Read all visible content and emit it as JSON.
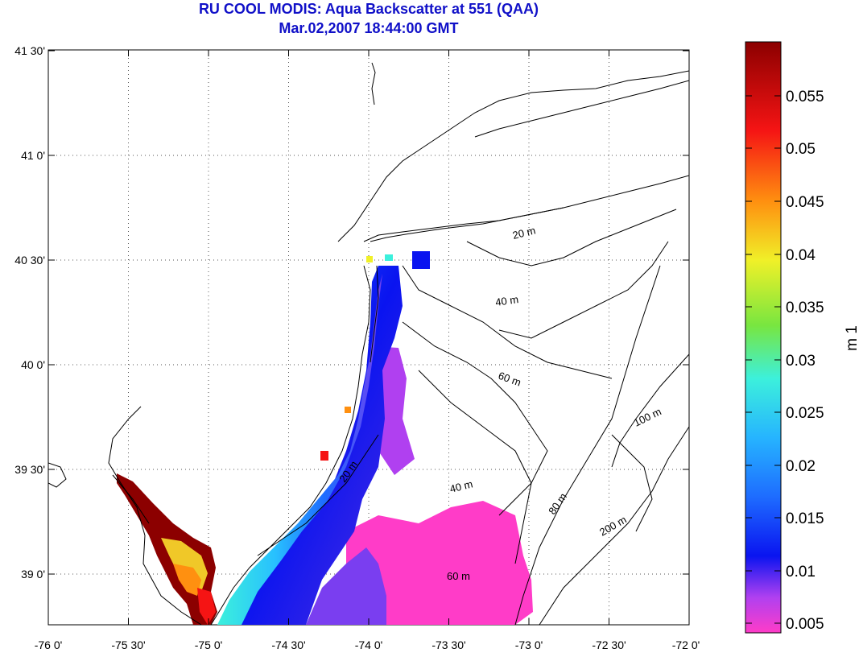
{
  "title": "RU COOL MODIS: Aqua Backscatter at 551 (QAA)",
  "subtitle": "Mar.02,2007 18:44:00 GMT",
  "x_ticks": [
    "-76 0'",
    "-75 30'",
    "-75 0'",
    "-74 30'",
    "-74 0'",
    "-73 30'",
    "-73 0'",
    "-72 30'",
    "-72 0'"
  ],
  "y_ticks": [
    "41 30'",
    "41 0'",
    "40 30'",
    "40 0'",
    "39 30'",
    "39 0'"
  ],
  "colorbar": {
    "label": "m 1",
    "ticks": [
      "0.055",
      "0.05",
      "0.045",
      "0.04",
      "0.035",
      "0.03",
      "0.025",
      "0.02",
      "0.015",
      "0.01",
      "0.005"
    ],
    "range": [
      0.003,
      0.06
    ],
    "colors": [
      "#ff3cc8",
      "#a040ff",
      "#0a14f0",
      "#1e78ff",
      "#28c0ff",
      "#3cf0dc",
      "#78e640",
      "#f0f028",
      "#ff8c10",
      "#f51414",
      "#8c0000"
    ]
  },
  "depth_contours": [
    "20 m",
    "40 m",
    "60 m",
    "100 m",
    "20 m",
    "40 m",
    "80 m",
    "200 m",
    "60 m"
  ],
  "chart_data": {
    "type": "heatmap",
    "title": "RU COOL MODIS: Aqua Backscatter at 551 (QAA)",
    "subtitle": "Mar.02,2007 18:44:00 GMT",
    "xlabel": "",
    "ylabel": "",
    "xlim": [
      -76.0,
      -72.0
    ],
    "ylim": [
      38.75,
      41.5
    ],
    "zlabel": "m 1",
    "zlim": [
      0.003,
      0.06
    ],
    "grid": true
  }
}
